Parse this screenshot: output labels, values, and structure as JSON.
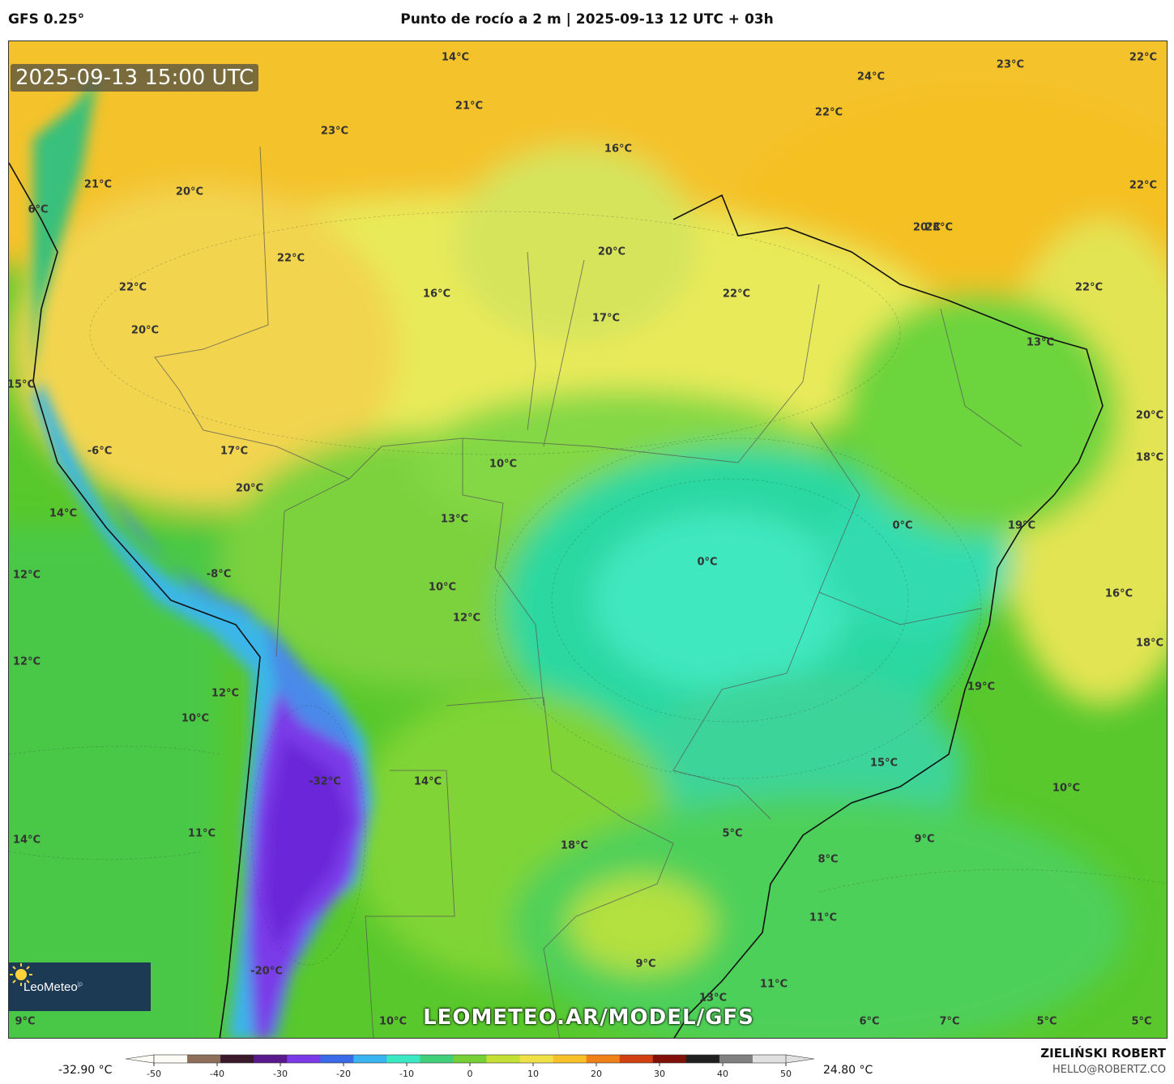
{
  "header": {
    "model": "GFS 0.25°",
    "title": "Punto de rocío a 2 m | 2025-09-13 12 UTC + 03h"
  },
  "map": {
    "timestamp": "2025-09-13 15:00 UTC",
    "watermark": "LEOMETEO.AR/MODEL/GFS",
    "logo_text": "LeoMeteo",
    "logo_suffix": "jp",
    "labels": [
      "14°C",
      "21°C",
      "23°C",
      "24°C",
      "23°C",
      "22°C",
      "22°C",
      "16°C",
      "21°C",
      "20°C",
      "6°C",
      "22°C",
      "20°C",
      "22°C",
      "23°C",
      "22°C",
      "16°C",
      "17°C",
      "20°C",
      "22°C",
      "22°C",
      "20°C",
      "13°C",
      "15°C",
      "20°C",
      "17°C",
      "-6°C",
      "10°C",
      "18°C",
      "20°C",
      "14°C",
      "13°C",
      "0°C",
      "19°C",
      "0°C",
      "-8°C",
      "10°C",
      "12°C",
      "12°C",
      "16°C",
      "12°C",
      "12°C",
      "18°C",
      "19°C",
      "10°C",
      "15°C",
      "-32°C",
      "14°C",
      "10°C",
      "11°C",
      "5°C",
      "9°C",
      "14°C",
      "18°C",
      "8°C",
      "11°C",
      "-20°C",
      "9°C",
      "13°C",
      "11°C",
      "9°C",
      "10°C",
      "6°C",
      "7°C",
      "5°C",
      "5°C"
    ]
  },
  "legend": {
    "min_label": "-32.90 °C",
    "max_label": "24.80 °C",
    "ticks": [
      "-50",
      "-40",
      "-30",
      "-20",
      "-10",
      "0",
      "10",
      "20",
      "30",
      "40",
      "50"
    ],
    "colors": [
      "#fdfbf5",
      "#8c6e5a",
      "#3a1a2a",
      "#5a1a8c",
      "#7a3ae8",
      "#3a6ae8",
      "#3ab4f0",
      "#3ae8c4",
      "#40d07c",
      "#74d034",
      "#c4e034",
      "#f0e048",
      "#f8c028",
      "#f08018",
      "#d04010",
      "#801008",
      "#202020",
      "#808080",
      "#e0e0e0"
    ]
  },
  "credits": {
    "author": "ZIELIŃSKI ROBERT",
    "email": "HELLO@ROBERTZ.CO"
  }
}
